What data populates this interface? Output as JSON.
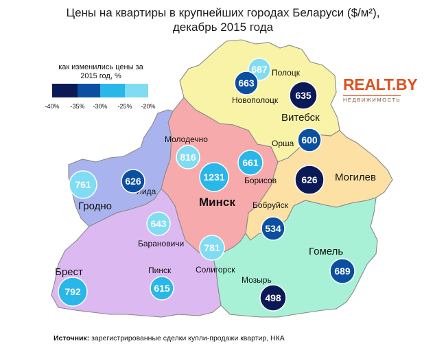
{
  "title": {
    "line1": "Цены на квартиры в крупнейших городах Беларуси ($/м²),",
    "line2": "декабрь 2015 года"
  },
  "legend": {
    "label_line1": "как изменились цены за",
    "label_line2": "2015 год, %",
    "ticks": [
      "-40%",
      "-35%",
      "-30%",
      "-25%",
      "-20%"
    ],
    "colors": [
      "#0b1a57",
      "#0b4fa0",
      "#29b6e8",
      "#7fdcf2"
    ]
  },
  "logo": {
    "main": "REALT.BY",
    "sub": "НЕДВИЖИМОСТЬ"
  },
  "region_colors": {
    "vitebsk": "#f9f3a8",
    "mogilev": "#fde0a4",
    "minsk": "#f6aaab",
    "grodno": "#a9b4ee",
    "brest": "#dcb9f0",
    "gomel": "#a8f1d6"
  },
  "regions": {
    "vitebsk": "Витебск",
    "mogilev": "Могилев",
    "minsk": "Минск",
    "grodno": "Гродно",
    "brest": "Брест",
    "gomel": "Гомель"
  },
  "cities": [
    {
      "name": "Полоцк",
      "price": "687",
      "change_class": 3
    },
    {
      "name": "Новополоцк",
      "price": "663",
      "change_class": 1
    },
    {
      "name": "Витебск",
      "price": "635",
      "change_class": 0
    },
    {
      "name": "Орша",
      "price": "600",
      "change_class": 1
    },
    {
      "name": "Могилев",
      "price": "626",
      "change_class": 0
    },
    {
      "name": "Бобруйск",
      "price": "534",
      "change_class": 1
    },
    {
      "name": "Гомель",
      "price": "689",
      "change_class": 1
    },
    {
      "name": "Мозырь",
      "price": "498",
      "change_class": 0
    },
    {
      "name": "Солигорск",
      "price": "781",
      "change_class": 3
    },
    {
      "name": "Минск",
      "price": "1231",
      "change_class": 2
    },
    {
      "name": "Борисов",
      "price": "661",
      "change_class": 2
    },
    {
      "name": "Молодечно",
      "price": "816",
      "change_class": 3
    },
    {
      "name": "Лида",
      "price": "626",
      "change_class": 1
    },
    {
      "name": "Гродно",
      "price": "761",
      "change_class": 3
    },
    {
      "name": "Барановичи",
      "price": "643",
      "change_class": 3
    },
    {
      "name": "Пинск",
      "price": "615",
      "change_class": 2
    },
    {
      "name": "Брест",
      "price": "792",
      "change_class": 2
    }
  ],
  "source": {
    "label": "Источник:",
    "text": " зарегистрированные сделки купли-продажи квартир, НКА"
  }
}
